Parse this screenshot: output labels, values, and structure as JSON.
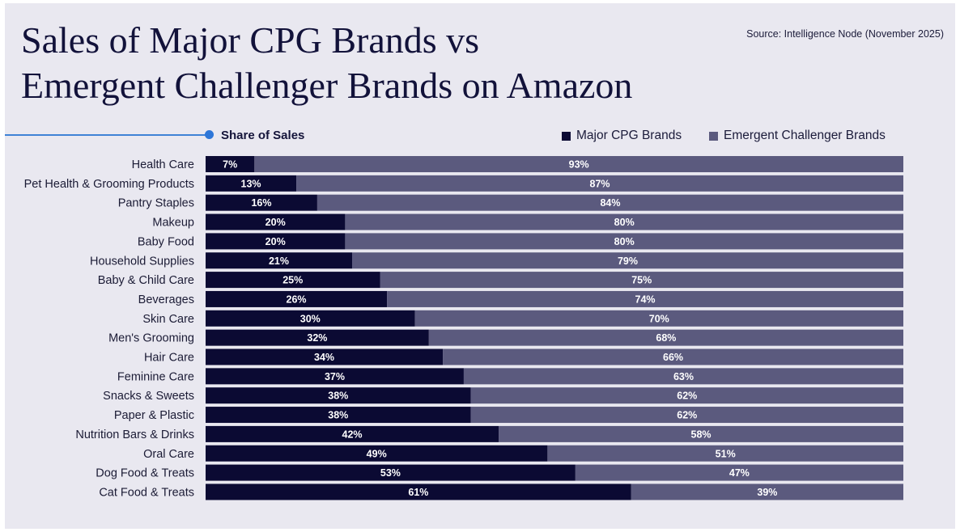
{
  "title_lines": [
    "Sales of Major CPG Brands vs",
    "Emergent Challenger Brands on Amazon"
  ],
  "source": "Source: Intelligence Node (November 2025)",
  "colors": {
    "background": "#e9e8f0",
    "title": "#12123a",
    "accent_line": "#3f82d6",
    "major": "#0b0a33",
    "challenger": "#5b5a7e"
  },
  "chart_data": {
    "type": "bar",
    "orientation": "horizontal",
    "stacked": "100%",
    "header": "Share of Sales",
    "legend_placement": "top-right",
    "categories": [
      "Health Care",
      "Pet Health & Grooming Products",
      "Pantry Staples",
      "Makeup",
      "Baby Food",
      "Household Supplies",
      "Baby & Child Care",
      "Beverages",
      "Skin Care",
      "Men's Grooming",
      "Hair Care",
      "Feminine Care",
      "Snacks & Sweets",
      "Paper & Plastic",
      "Nutrition Bars & Drinks",
      "Oral Care",
      "Dog Food & Treats",
      "Cat Food & Treats"
    ],
    "series": [
      {
        "name": "Major CPG Brands",
        "color": "#0b0a33",
        "values": [
          7,
          13,
          16,
          20,
          20,
          21,
          25,
          26,
          30,
          32,
          34,
          37,
          38,
          38,
          42,
          49,
          53,
          61
        ]
      },
      {
        "name": "Emergent Challenger Brands",
        "color": "#5b5a7e",
        "values": [
          93,
          87,
          84,
          80,
          80,
          79,
          75,
          74,
          70,
          68,
          66,
          63,
          62,
          62,
          58,
          51,
          47,
          39
        ]
      }
    ],
    "value_suffix": "%",
    "xlim": [
      0,
      100
    ],
    "grid": false
  }
}
